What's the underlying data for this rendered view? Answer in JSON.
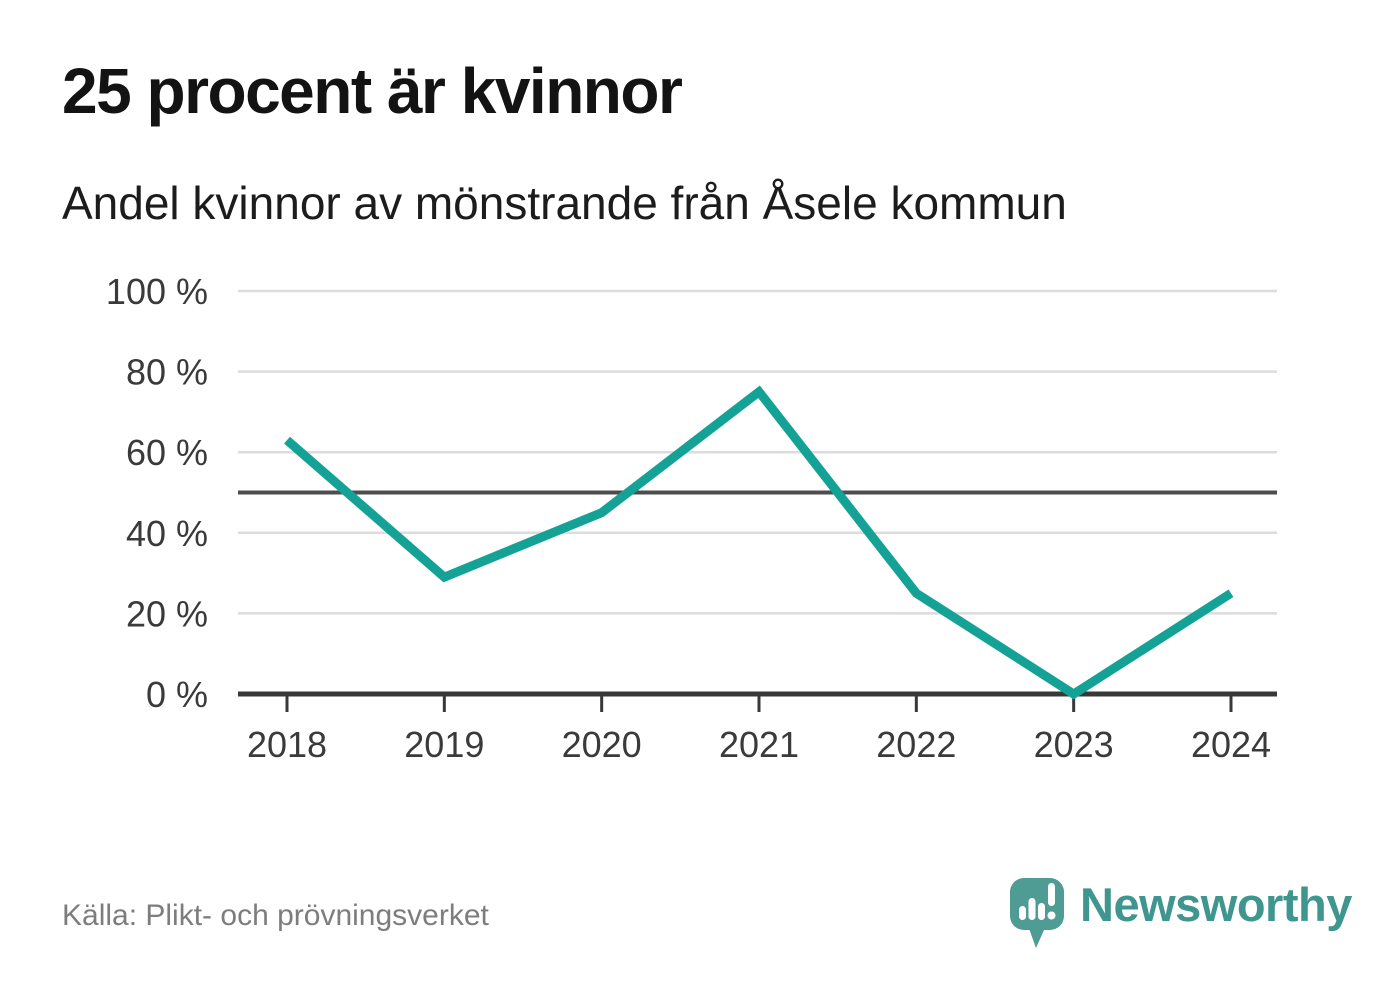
{
  "title": "25 procent är kvinnor",
  "subtitle": "Andel kvinnor av mönstrande från Åsele kommun",
  "source": "Källa: Plikt- och prövningsverket",
  "logo": {
    "brand": "Newsworthy"
  },
  "colors": {
    "background": "#ffffff",
    "line": "#15a296",
    "grid": "#dcdcdc",
    "reference": "#4d4d4d",
    "axis": "#383838",
    "tick_label": "#3a3a3a",
    "title_text": "#131313",
    "muted_text": "#7d7d7d",
    "logo_teal": "#4f9c95",
    "logo_text": "#3f968e"
  },
  "chart_data": {
    "type": "line",
    "title": "25 procent är kvinnor",
    "subtitle": "Andel kvinnor av mönstrande från Åsele kommun",
    "x": [
      2018,
      2019,
      2020,
      2021,
      2022,
      2023,
      2024
    ],
    "series": [
      {
        "name": "Andel kvinnor av mönstrande",
        "values": [
          63,
          29,
          45,
          75,
          25,
          0,
          25
        ]
      }
    ],
    "unit": "%",
    "ylim": [
      0,
      100
    ],
    "yticks": [
      0,
      20,
      40,
      60,
      80,
      100
    ],
    "ytick_suffix": " %",
    "reference_line": 50,
    "grid": "horizontal",
    "legend": "none",
    "xlabel": "",
    "ylabel": ""
  }
}
